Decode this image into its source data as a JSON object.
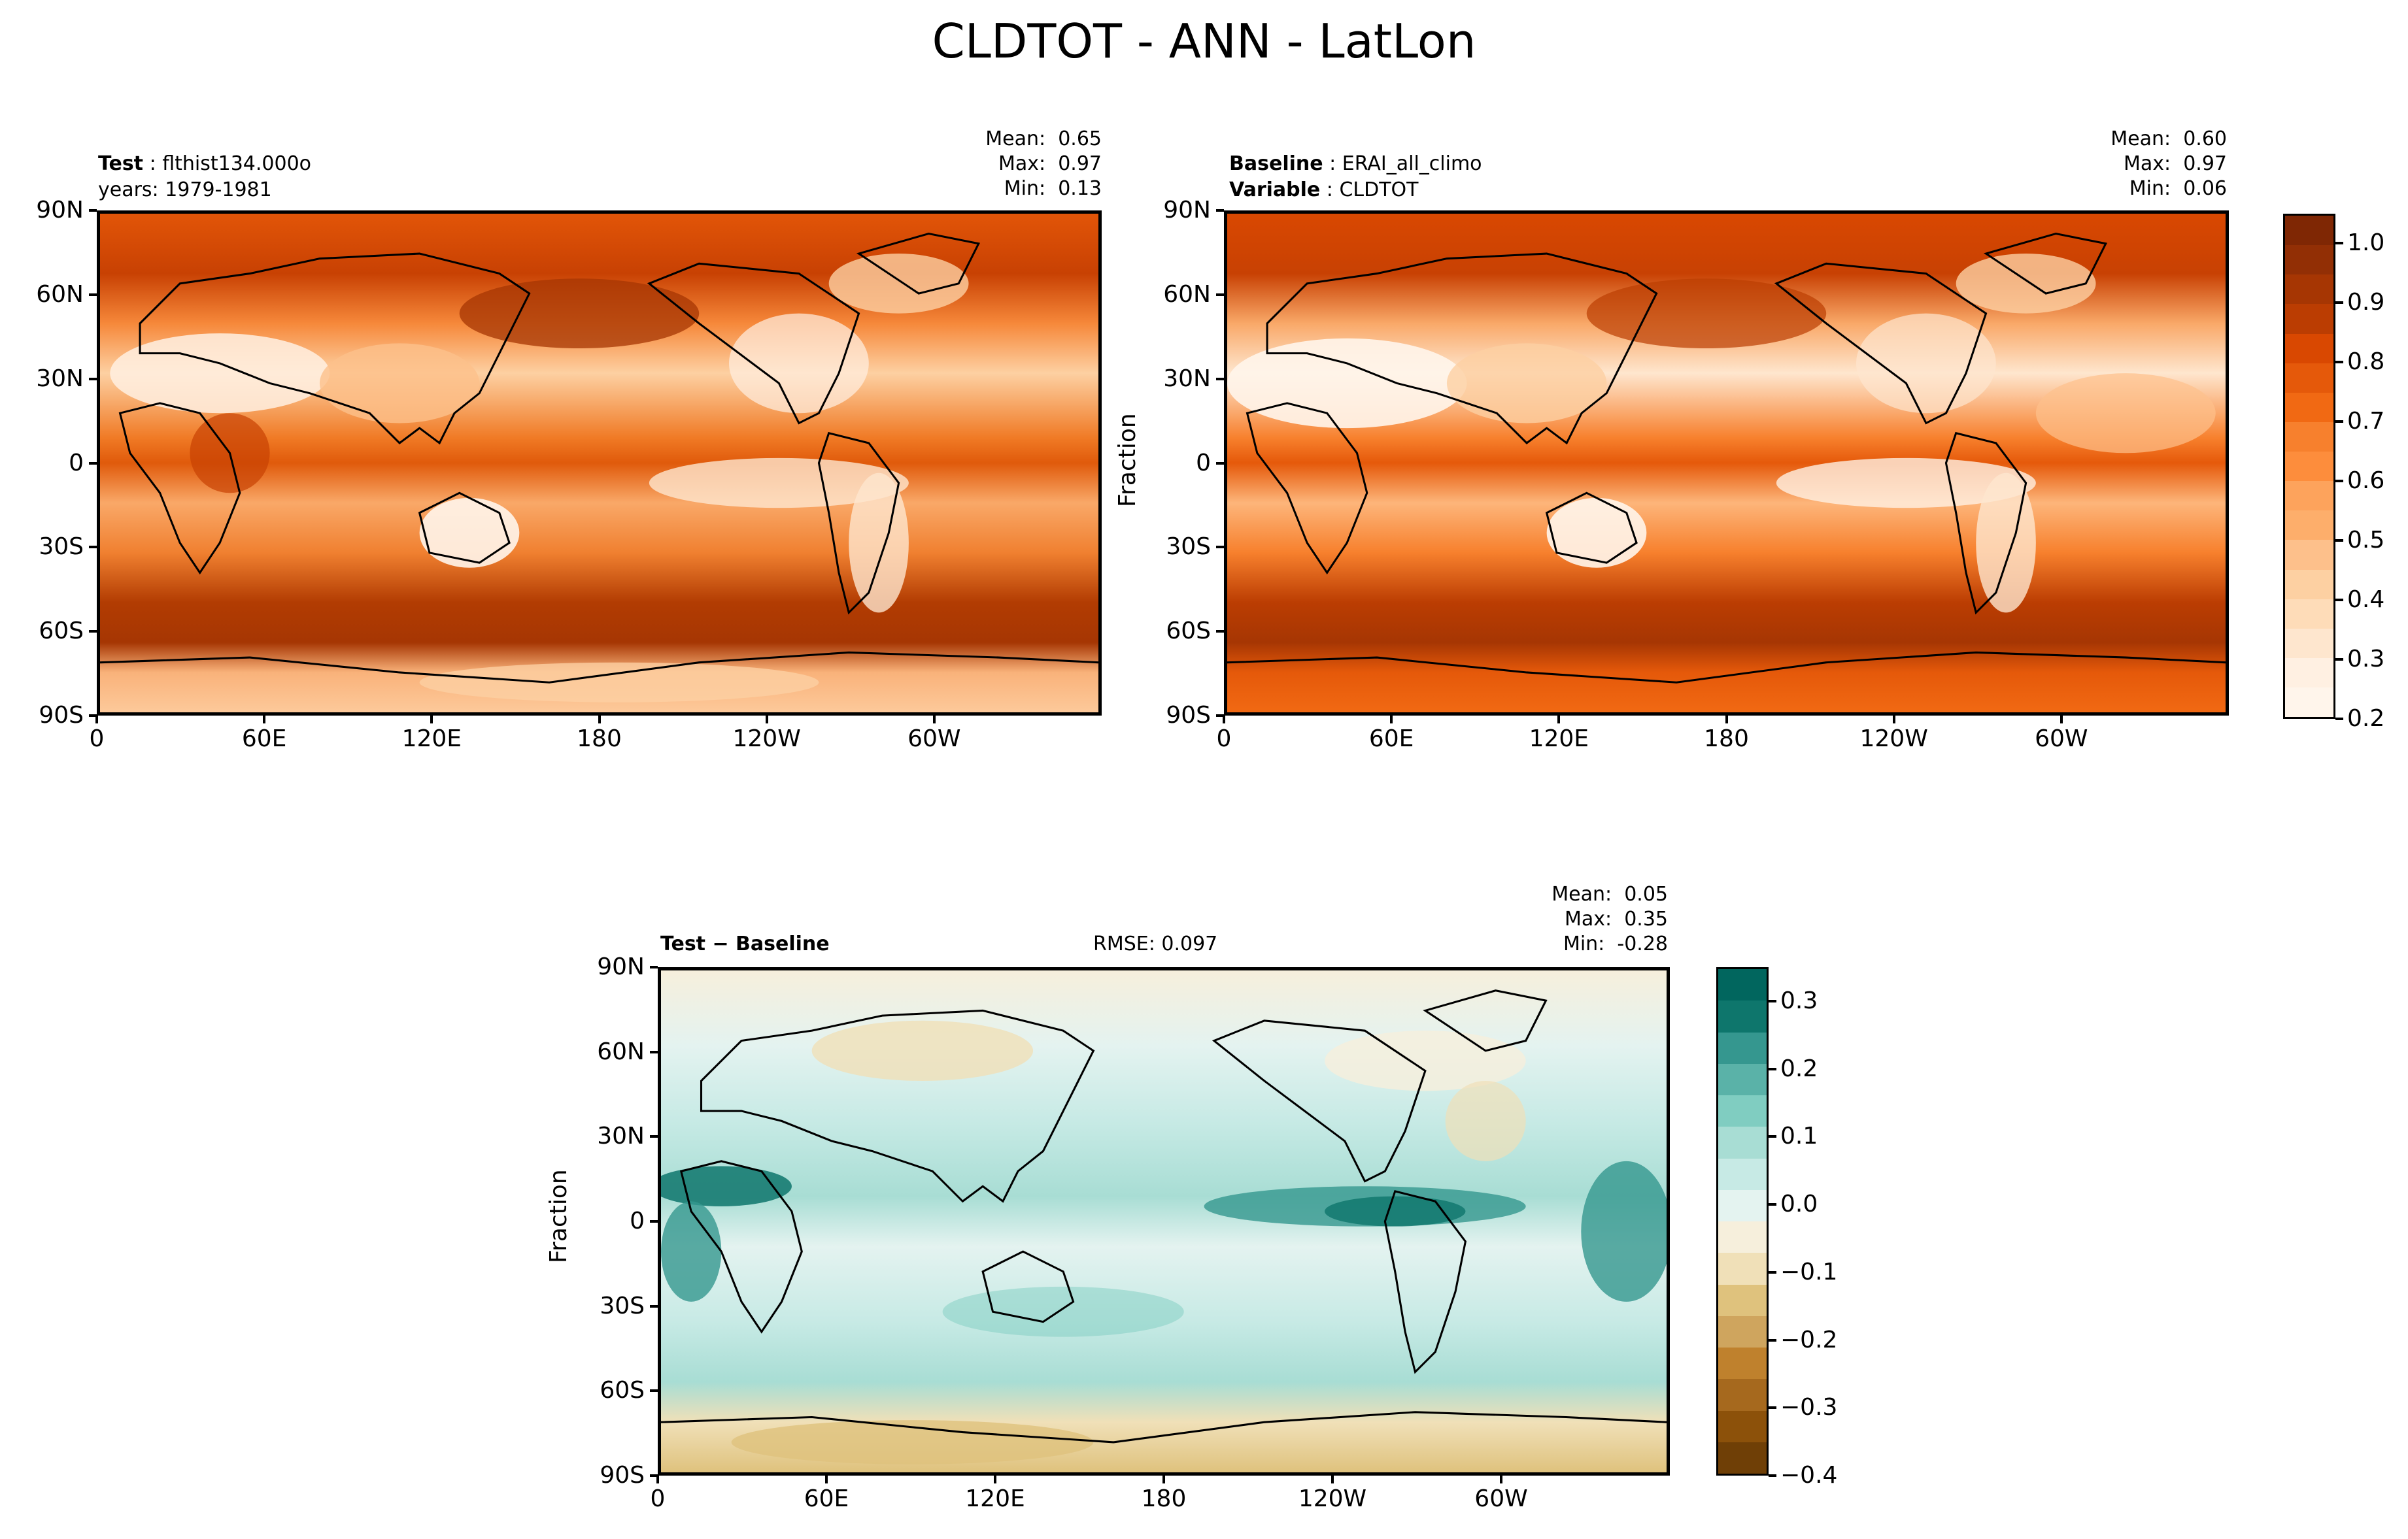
{
  "figure_title": "CLDTOT - ANN - LatLon",
  "panels": {
    "test": {
      "label_bold": "Test",
      "label_value": "flthist134.000o",
      "line2": "years: 1979-1981",
      "mean": "0.65",
      "max": "0.97",
      "min": "0.13"
    },
    "baseline": {
      "label_bold": "Baseline",
      "label_value": "ERAI_all_climo",
      "line2_bold": "Variable",
      "line2_value": "CLDTOT",
      "mean": "0.60",
      "max": "0.97",
      "min": "0.06",
      "ylabel": "Fraction"
    },
    "diff": {
      "label": "Test − Baseline",
      "rmse": "RMSE: 0.097",
      "mean": "0.05",
      "max": "0.35",
      "min": "-0.28",
      "ylabel": "Fraction"
    }
  },
  "stat_labels": {
    "mean": "Mean:",
    "max": "Max:",
    "min": "Min:"
  },
  "lat_ticks": [
    "90N",
    "60N",
    "30N",
    "0",
    "30S",
    "60S",
    "90S"
  ],
  "lon_ticks": [
    "0",
    "60E",
    "120E",
    "180",
    "120W",
    "60W"
  ],
  "colorbar_main": {
    "ticks": [
      "1.0",
      "0.9",
      "0.8",
      "0.7",
      "0.6",
      "0.5",
      "0.4",
      "0.3",
      "0.2"
    ],
    "colors": [
      "#7f2704",
      "#922f05",
      "#a63603",
      "#bb3d02",
      "#d94801",
      "#e5590a",
      "#f16913",
      "#f7802d",
      "#fd8d3c",
      "#fda35c",
      "#fdae6b",
      "#fdc08b",
      "#fdd0a2",
      "#fedcb8",
      "#fee6ce",
      "#fff0e2",
      "#fff5eb"
    ]
  },
  "colorbar_diff": {
    "ticks": [
      "0.3",
      "0.2",
      "0.1",
      "0.0",
      "−0.1",
      "−0.2",
      "−0.3",
      "−0.4"
    ],
    "colors": [
      "#01665e",
      "#0e766c",
      "#35978f",
      "#5ab2a8",
      "#80cdc1",
      "#a8ddd4",
      "#c7eae5",
      "#e4f3f0",
      "#f6efdc",
      "#f0e0b8",
      "#dfc27d",
      "#cfa55e",
      "#bf812d",
      "#a6691e",
      "#8c510a",
      "#6f3f06"
    ]
  },
  "chart_data": [
    {
      "type": "heatmap",
      "title": "Test",
      "subtitle": "flthist134.000o",
      "x": [
        "0",
        "60E",
        "120E",
        "180",
        "120W",
        "60W"
      ],
      "y": [
        "90N",
        "60N",
        "30N",
        "0",
        "30S",
        "60S",
        "90S"
      ],
      "mean": 0.65,
      "max": 0.97,
      "min": 0.13,
      "colorbar_range": [
        0.2,
        1.05
      ]
    },
    {
      "type": "heatmap",
      "title": "Baseline",
      "subtitle": "ERAI_all_climo",
      "ylabel": "Fraction",
      "x": [
        "0",
        "60E",
        "120E",
        "180",
        "120W",
        "60W"
      ],
      "y": [
        "90N",
        "60N",
        "30N",
        "0",
        "30S",
        "60S",
        "90S"
      ],
      "mean": 0.6,
      "max": 0.97,
      "min": 0.06,
      "colorbar_range": [
        0.2,
        1.05
      ]
    },
    {
      "type": "heatmap",
      "title": "Test − Baseline",
      "subtitle": "RMSE: 0.097",
      "ylabel": "Fraction",
      "x": [
        "0",
        "60E",
        "120E",
        "180",
        "120W",
        "60W"
      ],
      "y": [
        "90N",
        "60N",
        "30N",
        "0",
        "30S",
        "60S",
        "90S"
      ],
      "mean": 0.05,
      "max": 0.35,
      "min": -0.28,
      "colorbar_range": [
        -0.4,
        0.35
      ]
    }
  ]
}
